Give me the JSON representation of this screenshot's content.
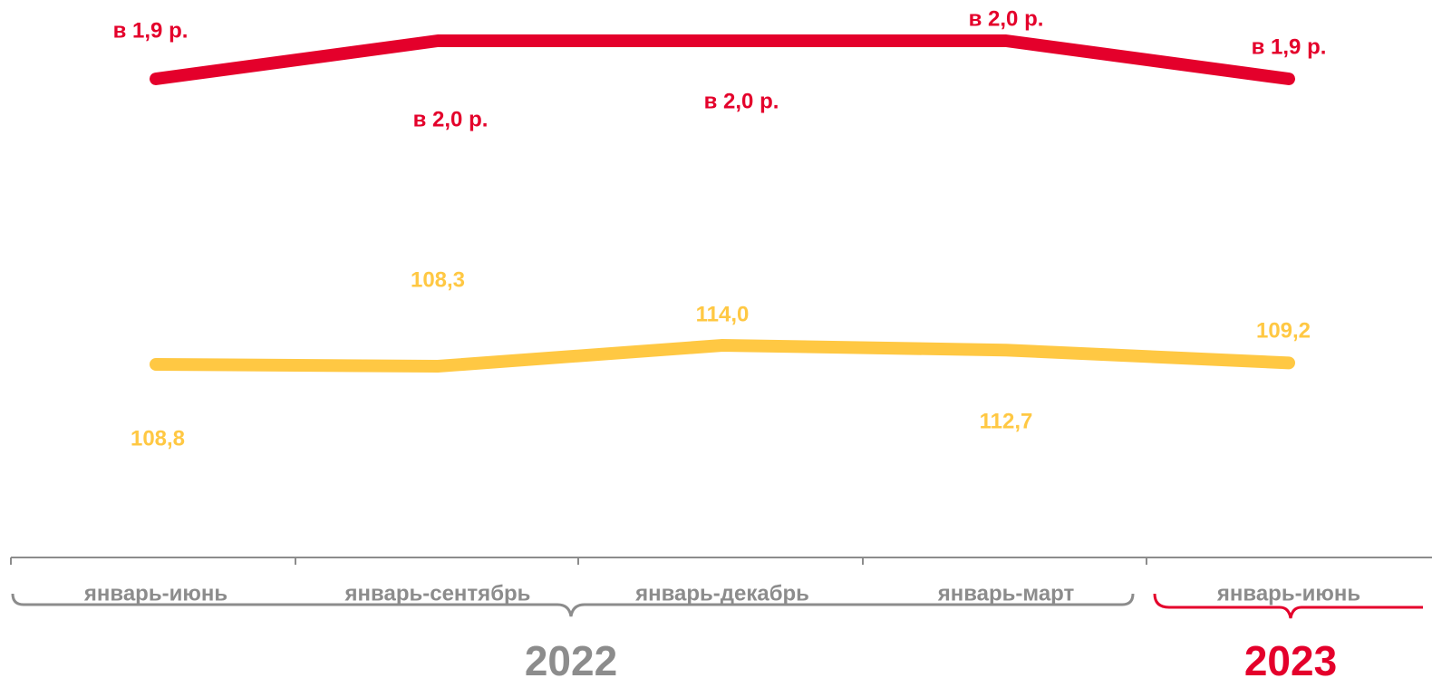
{
  "chart_data": {
    "type": "line",
    "categories": [
      "январь-июнь",
      "январь-сентябрь",
      "январь-декабрь",
      "январь-март",
      "январь-июнь"
    ],
    "groups": [
      "2022",
      "2023"
    ],
    "series": [
      {
        "color": "#e4002b",
        "values": [
          1.9,
          2.0,
          2.0,
          2.0,
          1.9
        ],
        "value_labels": [
          "в 1,9 р.",
          "в 2,0 р.",
          "в 2,0 р.",
          "в 2,0 р.",
          "в 1,9 р."
        ]
      },
      {
        "color": "#ffc843",
        "values": [
          108.8,
          108.3,
          114.0,
          112.7,
          109.2
        ],
        "value_labels": [
          "108,8",
          "108,3",
          "114,0",
          "112,7",
          "109,2"
        ]
      }
    ],
    "group_colors": [
      "#8c8c8c",
      "#e4002b"
    ]
  }
}
